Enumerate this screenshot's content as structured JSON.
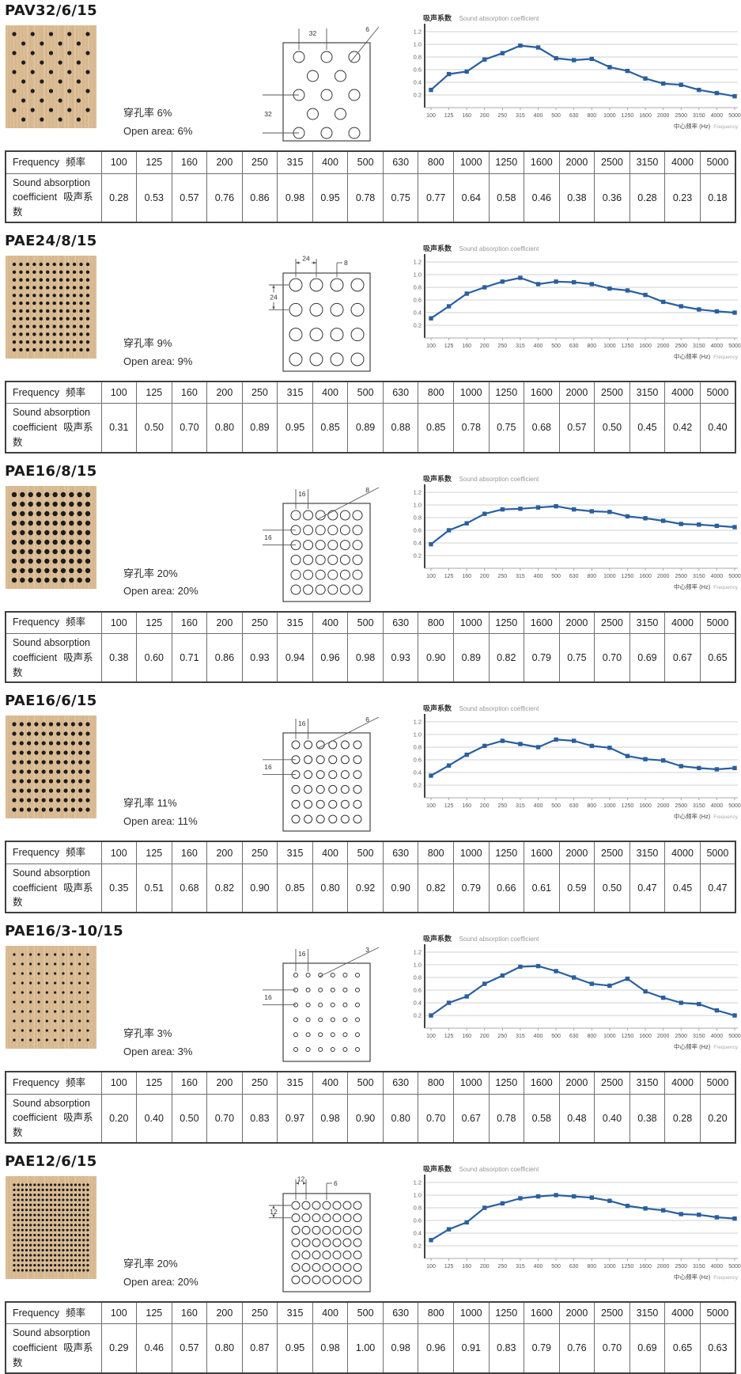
{
  "colors": {
    "line": "#2a5f9e",
    "grid": "#d2d2d2",
    "wood": "#d8b88f",
    "dot": "#1c1c1c"
  },
  "frequencies": [
    "100",
    "125",
    "160",
    "200",
    "250",
    "315",
    "400",
    "500",
    "630",
    "800",
    "1000",
    "1250",
    "1600",
    "2000",
    "2500",
    "3150",
    "4000",
    "5000"
  ],
  "table_labels": {
    "freq_en": "Frequency",
    "freq_zh": "频率",
    "coef_en1": "Sound absorption",
    "coef_en2": "coefficient",
    "coef_zh": "吸声系数"
  },
  "chart_labels": {
    "title_zh": "吸声系数",
    "title_en": "Sound absorption coefficient",
    "xlabel_zh": "中心频率 (Hz)",
    "xlabel_en": "Frequency"
  },
  "sections": [
    {
      "title": "PAV32/6/15",
      "open_area_zh": "穿孔率 6%",
      "open_area_en": "Open area: 6%",
      "coefficients": [
        "0.28",
        "0.53",
        "0.57",
        "0.76",
        "0.86",
        "0.98",
        "0.95",
        "0.78",
        "0.75",
        "0.77",
        "0.64",
        "0.58",
        "0.46",
        "0.38",
        "0.36",
        "0.28",
        "0.23",
        "0.18"
      ],
      "drawing": {
        "pattern": "staggered",
        "rows": 5,
        "cols": 3,
        "r": 7,
        "dim_top": "32",
        "dim_hole": "6",
        "dim_left": "32",
        "arrow": false,
        "left_rows": [
          2,
          4
        ],
        "hole_col": 2
      },
      "panel": {
        "pattern": "staggered",
        "rows": 10,
        "cols": 5,
        "r": 2.6
      }
    },
    {
      "title": "PAE24/8/15",
      "open_area_zh": "穿孔率 9%",
      "open_area_en": "Open area: 9%",
      "coefficients": [
        "0.31",
        "0.50",
        "0.70",
        "0.80",
        "0.89",
        "0.95",
        "0.85",
        "0.89",
        "0.88",
        "0.85",
        "0.78",
        "0.75",
        "0.68",
        "0.57",
        "0.50",
        "0.45",
        "0.42",
        "0.40"
      ],
      "drawing": {
        "pattern": "grid",
        "rows": 4,
        "cols": 4,
        "r": 8,
        "dim_top": "24",
        "dim_hole": "8",
        "dim_left": "24",
        "arrow": true,
        "left_rows": [
          0,
          1
        ],
        "hole_col": 2
      },
      "panel": {
        "pattern": "grid",
        "rows": 12,
        "cols": 12,
        "r": 2.2
      }
    },
    {
      "title": "PAE16/8/15",
      "open_area_zh": "穿孔率 20%",
      "open_area_en": "Open area: 20%",
      "coefficients": [
        "0.38",
        "0.60",
        "0.71",
        "0.86",
        "0.93",
        "0.94",
        "0.96",
        "0.98",
        "0.93",
        "0.90",
        "0.89",
        "0.82",
        "0.79",
        "0.75",
        "0.70",
        "0.69",
        "0.67",
        "0.65"
      ],
      "drawing": {
        "pattern": "grid",
        "rows": 6,
        "cols": 6,
        "r": 6,
        "dim_top": "16",
        "dim_hole": "8",
        "dim_left": "16",
        "arrow": false,
        "left_rows": [
          1,
          2
        ],
        "hole_col": 2
      },
      "panel": {
        "pattern": "grid",
        "rows": 10,
        "cols": 10,
        "r": 3.2
      }
    },
    {
      "title": "PAE16/6/15",
      "open_area_zh": "穿孔率 11%",
      "open_area_en": "Open area: 11%",
      "coefficients": [
        "0.35",
        "0.51",
        "0.68",
        "0.82",
        "0.90",
        "0.85",
        "0.80",
        "0.92",
        "0.90",
        "0.82",
        "0.79",
        "0.66",
        "0.61",
        "0.59",
        "0.50",
        "0.47",
        "0.45",
        "0.47"
      ],
      "drawing": {
        "pattern": "grid",
        "rows": 6,
        "cols": 6,
        "r": 5,
        "dim_top": "16",
        "dim_hole": "6",
        "dim_left": "16",
        "arrow": false,
        "left_rows": [
          1,
          2
        ],
        "hole_col": 2
      },
      "panel": {
        "pattern": "grid",
        "rows": 10,
        "cols": 11,
        "r": 2.6
      }
    },
    {
      "title": "PAE16/3-10/15",
      "open_area_zh": "穿孔率 3%",
      "open_area_en": "Open area: 3%",
      "coefficients": [
        "0.20",
        "0.40",
        "0.50",
        "0.70",
        "0.83",
        "0.97",
        "0.98",
        "0.90",
        "0.80",
        "0.70",
        "0.67",
        "0.78",
        "0.58",
        "0.48",
        "0.40",
        "0.38",
        "0.28",
        "0.20"
      ],
      "drawing": {
        "pattern": "grid",
        "rows": 6,
        "cols": 6,
        "r": 2.5,
        "dim_top": "16",
        "dim_hole": "3",
        "dim_left": "16",
        "arrow": false,
        "left_rows": [
          1,
          2
        ],
        "hole_col": 2
      },
      "panel": {
        "pattern": "grid",
        "rows": 10,
        "cols": 10,
        "r": 1.6
      }
    },
    {
      "title": "PAE12/6/15",
      "open_area_zh": "穿孔率 20%",
      "open_area_en": "Open area: 20%",
      "coefficients": [
        "0.29",
        "0.46",
        "0.57",
        "0.80",
        "0.87",
        "0.95",
        "0.98",
        "1.00",
        "0.98",
        "0.96",
        "0.91",
        "0.83",
        "0.79",
        "0.76",
        "0.70",
        "0.69",
        "0.65",
        "0.63"
      ],
      "drawing": {
        "pattern": "grid",
        "rows": 7,
        "cols": 7,
        "r": 5,
        "dim_top": "12",
        "dim_hole": "6",
        "dim_left": "12",
        "arrow": true,
        "left_rows": [
          0,
          1
        ],
        "hole_col": 3
      },
      "panel": {
        "pattern": "grid",
        "rows": 18,
        "cols": 19,
        "r": 1.6
      }
    }
  ],
  "chart_data": {
    "type": "line",
    "title": "吸声系数 Sound absorption coefficient",
    "xlabel": "中心频率 (Hz) Frequency",
    "ylabel": "",
    "categories": [
      "100",
      "125",
      "160",
      "200",
      "250",
      "315",
      "400",
      "500",
      "630",
      "800",
      "1000",
      "1250",
      "1600",
      "2000",
      "2500",
      "3150",
      "4000",
      "5000"
    ],
    "ylim": [
      0,
      1.3
    ],
    "yticks": [
      0.2,
      0.4,
      0.6,
      0.8,
      1.0,
      1.2
    ],
    "grid": "horizontal",
    "legend": "none",
    "series": [
      {
        "name": "PAV32/6/15",
        "values": [
          0.28,
          0.53,
          0.57,
          0.76,
          0.86,
          0.98,
          0.95,
          0.78,
          0.75,
          0.77,
          0.64,
          0.58,
          0.46,
          0.38,
          0.36,
          0.28,
          0.23,
          0.18
        ]
      },
      {
        "name": "PAE24/8/15",
        "values": [
          0.31,
          0.5,
          0.7,
          0.8,
          0.89,
          0.95,
          0.85,
          0.89,
          0.88,
          0.85,
          0.78,
          0.75,
          0.68,
          0.57,
          0.5,
          0.45,
          0.42,
          0.4
        ]
      },
      {
        "name": "PAE16/8/15",
        "values": [
          0.38,
          0.6,
          0.71,
          0.86,
          0.93,
          0.94,
          0.96,
          0.98,
          0.93,
          0.9,
          0.89,
          0.82,
          0.79,
          0.75,
          0.7,
          0.69,
          0.67,
          0.65
        ]
      },
      {
        "name": "PAE16/6/15",
        "values": [
          0.35,
          0.51,
          0.68,
          0.82,
          0.9,
          0.85,
          0.8,
          0.92,
          0.9,
          0.82,
          0.79,
          0.66,
          0.61,
          0.59,
          0.5,
          0.47,
          0.45,
          0.47
        ]
      },
      {
        "name": "PAE16/3-10/15",
        "values": [
          0.2,
          0.4,
          0.5,
          0.7,
          0.83,
          0.97,
          0.98,
          0.9,
          0.8,
          0.7,
          0.67,
          0.78,
          0.58,
          0.48,
          0.4,
          0.38,
          0.28,
          0.2
        ]
      },
      {
        "name": "PAE12/6/15",
        "values": [
          0.29,
          0.46,
          0.57,
          0.8,
          0.87,
          0.95,
          0.98,
          1.0,
          0.98,
          0.96,
          0.91,
          0.83,
          0.79,
          0.76,
          0.7,
          0.69,
          0.65,
          0.63
        ]
      }
    ]
  }
}
